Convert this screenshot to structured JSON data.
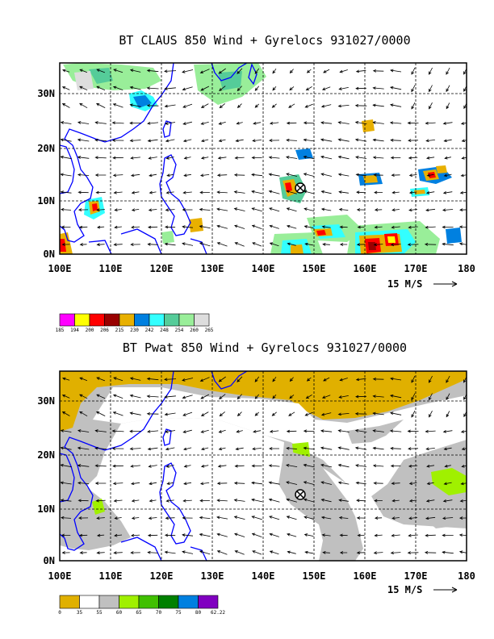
{
  "panels": [
    {
      "title": "BT CLAUS 850 Wind + Gyrelocs 931027/0000",
      "lat_labels": [
        "30N",
        "20N",
        "10N",
        "0N"
      ],
      "lon_labels": [
        "100E",
        "110E",
        "120E",
        "130E",
        "140E",
        "150E",
        "160E",
        "170E",
        "180"
      ],
      "vector_label": "15 M/S",
      "colorbar_values": [
        "185",
        "194",
        "200",
        "206",
        "215",
        "230",
        "242",
        "248",
        "254",
        "260",
        "265"
      ],
      "colorbar_colors": [
        "#ff00ff",
        "#ffff00",
        "#ff0000",
        "#990000",
        "#e8b000",
        "#0080e0",
        "#33ffff",
        "#55cc99",
        "#99ee99",
        "#dddddd"
      ],
      "gyre_location": {
        "lon": 147.0,
        "lat": 12.5
      }
    },
    {
      "title": "BT Pwat 850 Wind + Gyrelocs 931027/0000",
      "lat_labels": [
        "30N",
        "20N",
        "10N",
        "0N"
      ],
      "lon_labels": [
        "100E",
        "110E",
        "120E",
        "130E",
        "140E",
        "150E",
        "160E",
        "170E",
        "180"
      ],
      "vector_label": "15 M/S",
      "colorbar_values": [
        "0",
        "35",
        "55",
        "60",
        "65",
        "70",
        "75",
        "80",
        "62.22"
      ],
      "colorbar_colors": [
        "#e0b000",
        "#ffffff",
        "#c0c0c0",
        "#a0f000",
        "#40c000",
        "#008000",
        "#0080e0",
        "#8000c0"
      ],
      "gyre_location": {
        "lon": 147.0,
        "lat": 12.0
      }
    }
  ],
  "map": {
    "lon_range": [
      100,
      180
    ],
    "lat_range": [
      0,
      35
    ],
    "grid": "dashed every 10 degrees",
    "coast_color": "#0000ff"
  }
}
